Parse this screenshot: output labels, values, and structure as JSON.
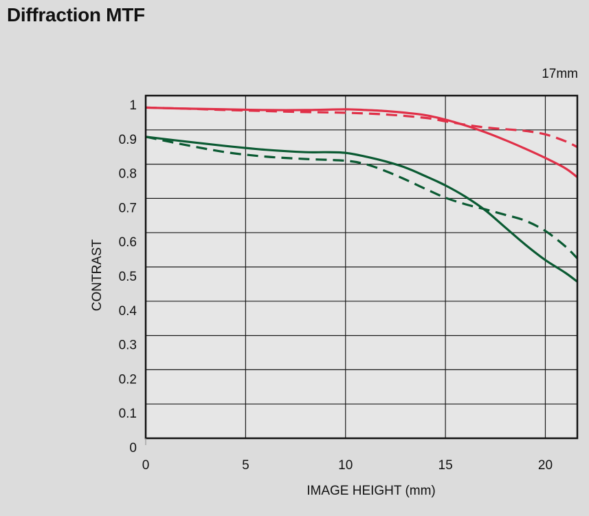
{
  "page": {
    "title": "Diffraction MTF",
    "focal_length": "17mm"
  },
  "colors": {
    "background": "#dcdcdc",
    "plot_bg": "#e6e6e6",
    "grid": "#1a1a1a",
    "red": "#e03048",
    "green": "#0a5a32"
  },
  "chart_data": {
    "type": "line",
    "title": "Diffraction MTF",
    "annotation": "17mm",
    "xlabel": "IMAGE HEIGHT (mm)",
    "ylabel": "CONTRAST",
    "xlim": [
      0,
      21.6
    ],
    "ylim": [
      0,
      1
    ],
    "x_ticks": [
      0,
      5,
      10,
      15,
      20
    ],
    "x_tick_labels": [
      "0",
      "5",
      "10",
      "15",
      "20"
    ],
    "y_ticks": [
      0,
      0.1,
      0.2,
      0.3,
      0.4,
      0.5,
      0.6,
      0.7,
      0.8,
      0.9,
      1
    ],
    "y_tick_labels": [
      "0",
      "0.1",
      "0.2",
      "0.3",
      "0.4",
      "0.5",
      "0.6",
      "0.7",
      "0.8",
      "0.9",
      "1"
    ],
    "grid": true,
    "series": [
      {
        "name": "red-solid",
        "color": "red",
        "dash": false,
        "x": [
          0,
          2,
          4,
          6,
          8,
          10,
          11,
          12,
          13,
          14,
          15,
          16,
          17,
          18,
          19,
          20,
          21,
          21.6
        ],
        "y": [
          0.965,
          0.962,
          0.96,
          0.958,
          0.958,
          0.96,
          0.958,
          0.955,
          0.95,
          0.943,
          0.93,
          0.913,
          0.893,
          0.87,
          0.845,
          0.818,
          0.788,
          0.762
        ]
      },
      {
        "name": "red-dashed",
        "color": "red",
        "dash": true,
        "x": [
          0,
          2,
          4,
          6,
          8,
          10,
          12,
          14,
          15,
          16,
          17,
          18,
          19,
          20,
          21,
          21.6
        ],
        "y": [
          0.965,
          0.962,
          0.958,
          0.955,
          0.952,
          0.95,
          0.945,
          0.935,
          0.925,
          0.915,
          0.907,
          0.902,
          0.897,
          0.887,
          0.867,
          0.85
        ]
      },
      {
        "name": "green-solid",
        "color": "green",
        "dash": false,
        "x": [
          0,
          2,
          4,
          6,
          8,
          9,
          10,
          11,
          12,
          13,
          14,
          15,
          16,
          17,
          18,
          19,
          20,
          21,
          21.6
        ],
        "y": [
          0.88,
          0.866,
          0.853,
          0.842,
          0.835,
          0.835,
          0.833,
          0.822,
          0.808,
          0.79,
          0.765,
          0.738,
          0.705,
          0.665,
          0.615,
          0.565,
          0.52,
          0.483,
          0.457
        ]
      },
      {
        "name": "green-dashed",
        "color": "green",
        "dash": true,
        "x": [
          0,
          2,
          4,
          6,
          8,
          10,
          11,
          12,
          13,
          14,
          15,
          16,
          17,
          18,
          19,
          20,
          21,
          21.6
        ],
        "y": [
          0.88,
          0.856,
          0.835,
          0.822,
          0.815,
          0.81,
          0.8,
          0.78,
          0.755,
          0.728,
          0.702,
          0.683,
          0.668,
          0.652,
          0.635,
          0.605,
          0.56,
          0.525
        ]
      }
    ]
  }
}
